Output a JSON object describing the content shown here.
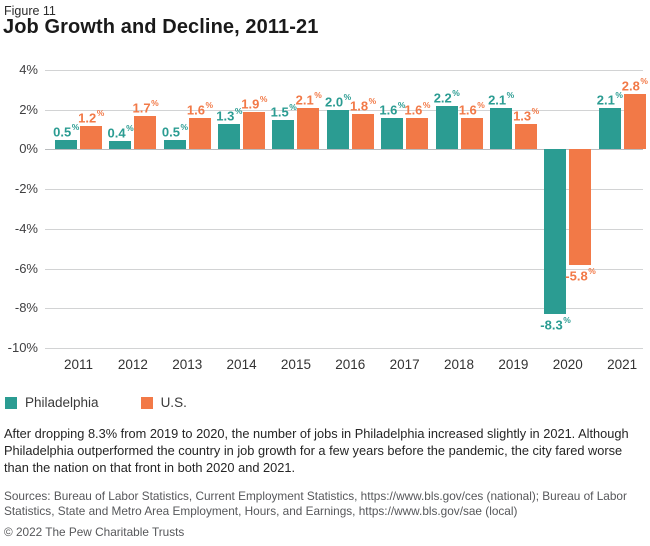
{
  "figure_label": "Figure 11",
  "title": "Job Growth and Decline, 2011-21",
  "chart_data": {
    "type": "bar",
    "categories": [
      "2011",
      "2012",
      "2013",
      "2014",
      "2015",
      "2016",
      "2017",
      "2018",
      "2019",
      "2020",
      "2021"
    ],
    "series": [
      {
        "name": "Philadelphia",
        "color": "#2b9c92",
        "values": [
          0.5,
          0.4,
          0.5,
          1.3,
          1.5,
          2.0,
          1.6,
          2.2,
          2.1,
          -8.3,
          2.1
        ]
      },
      {
        "name": "U.S.",
        "color": "#f27947",
        "values": [
          1.2,
          1.7,
          1.6,
          1.9,
          2.1,
          1.8,
          1.6,
          1.6,
          1.3,
          -5.8,
          2.8
        ]
      }
    ],
    "value_label_suffix": "%",
    "ylim": [
      -10,
      4
    ],
    "yticks": [
      {
        "value": 4,
        "label": "4%"
      },
      {
        "value": 2,
        "label": "2%"
      },
      {
        "value": 0,
        "label": "0%"
      },
      {
        "value": -2,
        "label": "-2%"
      },
      {
        "value": -4,
        "label": "-4%"
      },
      {
        "value": -6,
        "label": "-6%"
      },
      {
        "value": -8,
        "label": "-8%"
      },
      {
        "value": -10,
        "label": "-10%"
      }
    ],
    "grid": true,
    "legend_position": "bottom-left",
    "xlabel": "",
    "ylabel": ""
  },
  "legend": {
    "items": [
      {
        "label": "Philadelphia",
        "color": "#2b9c92"
      },
      {
        "label": "U.S.",
        "color": "#f27947"
      }
    ]
  },
  "caption": "After dropping 8.3% from 2019 to 2020, the number of jobs in Philadelphia increased slightly in 2021. Although Philadelphia outperformed the country in job growth for a few years before the pandemic, the city fared worse than the nation on that front in both 2020 and 2021.",
  "sources": "Sources: Bureau of Labor Statistics, Current Employment Statistics, https://www.bls.gov/ces (national); Bureau of Labor Statistics, State and Metro Area Employment, Hours, and Earnings, https://www.bls.gov/sae (local)",
  "copyright": "© 2022 The Pew Charitable Trusts"
}
